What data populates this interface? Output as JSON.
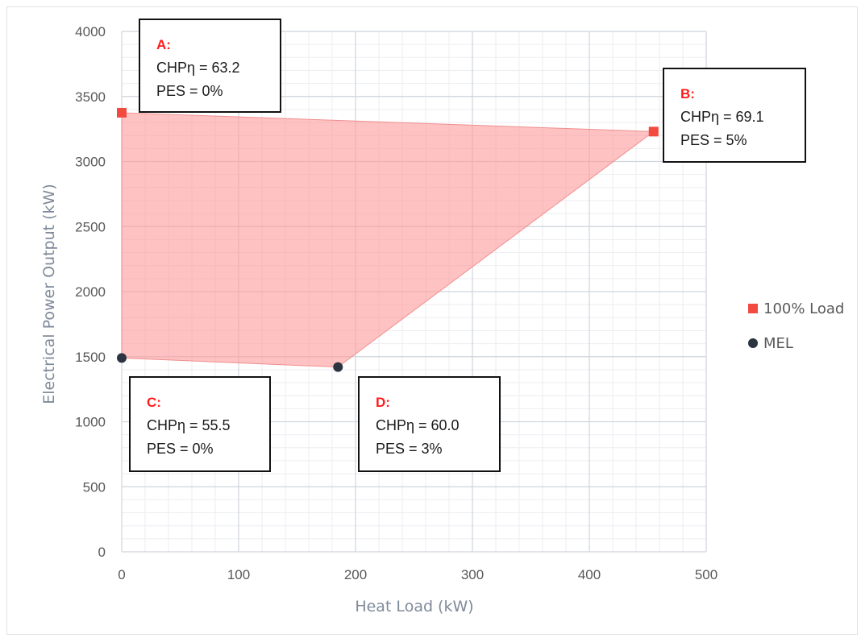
{
  "chart_data": {
    "type": "scatter",
    "xlabel": "Heat Load (kW)",
    "ylabel": "Electrical Power Output (kW)",
    "xlim": [
      0,
      500
    ],
    "ylim": [
      0,
      4000
    ],
    "x_ticks": [
      "0",
      "100",
      "200",
      "300",
      "400",
      "500"
    ],
    "y_ticks": [
      "0",
      "500",
      "1000",
      "1500",
      "2000",
      "2500",
      "3000",
      "3500",
      "4000"
    ],
    "grid": true,
    "legend_position": "right",
    "series": [
      {
        "name": "100% Load",
        "marker": "square",
        "color": "#f24a3f",
        "points": [
          {
            "x": 0,
            "y": 3375
          },
          {
            "x": 455,
            "y": 3230
          }
        ]
      },
      {
        "name": "MEL",
        "marker": "circle",
        "color": "#2b3440",
        "points": [
          {
            "x": 0,
            "y": 1490
          },
          {
            "x": 185,
            "y": 1420
          }
        ]
      }
    ],
    "region": {
      "color": "#ff9a9a",
      "vertices": [
        {
          "x": 0,
          "y": 3375
        },
        {
          "x": 455,
          "y": 3230
        },
        {
          "x": 185,
          "y": 1420
        },
        {
          "x": 0,
          "y": 1490
        }
      ]
    },
    "annotations": [
      {
        "label": "A:",
        "line1": "CHPη = 63.2",
        "line2": "PES = 0%"
      },
      {
        "label": "B:",
        "line1": "CHPη = 69.1",
        "line2": "PES = 5%"
      },
      {
        "label": "C:",
        "line1": "CHPη = 55.5",
        "line2": "PES = 0%"
      },
      {
        "label": "D:",
        "line1": "CHPη = 60.0",
        "line2": "PES = 3%"
      }
    ]
  }
}
